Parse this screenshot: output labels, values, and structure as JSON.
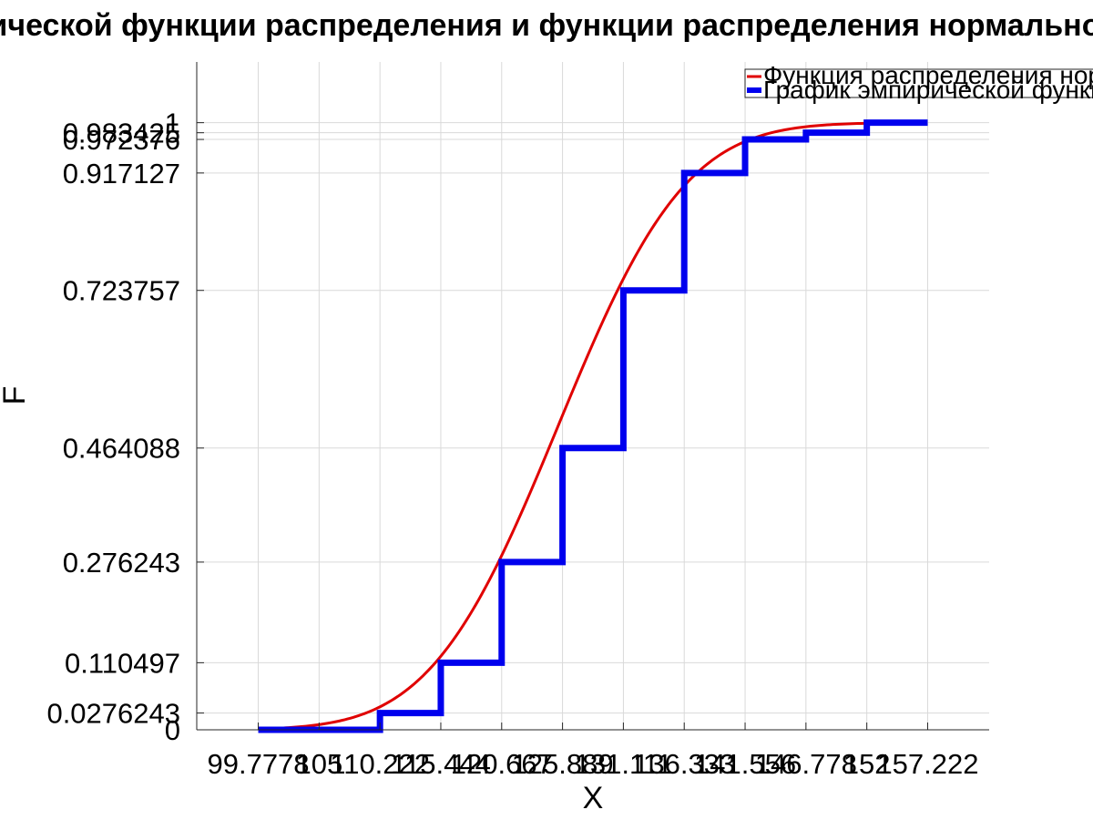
{
  "chart_data": {
    "type": "line",
    "title": "График эмпирической функции распределения и функции распределения нормального распределения",
    "xlabel": "X",
    "ylabel": "F",
    "xlim": [
      94.5,
      162.5
    ],
    "ylim": [
      0,
      1.1
    ],
    "grid": true,
    "legend_position": "top-right",
    "x_ticks": [
      99.7778,
      105,
      110.222,
      115.444,
      120.667,
      125.889,
      131.111,
      136.333,
      141.556,
      146.778,
      152,
      157.222
    ],
    "x_tick_labels": [
      "99.7778",
      "105",
      "110.222",
      "115.444",
      "120.667",
      "125.889",
      "131.111",
      "136.333",
      "141.556",
      "146.778",
      "152",
      "157.222"
    ],
    "y_ticks": [
      0,
      0.0276243,
      0.110497,
      0.276243,
      0.464088,
      0.723757,
      0.917127,
      0.972376,
      0.983425,
      1
    ],
    "y_tick_labels": [
      "0",
      "0.0276243",
      "0.110497",
      "0.276243",
      "0.464088",
      "0.723757",
      "0.917127",
      "0.972376",
      "0.983425",
      "1"
    ],
    "series": [
      {
        "name": "Функция распределения нормального распределения",
        "kind": "normal_cdf",
        "mean": 125.5,
        "std": 8.6,
        "x_range": [
          99.7778,
          157.222
        ],
        "color": "#e00000"
      },
      {
        "name": "График эмпирической функции распределения",
        "kind": "step",
        "x": [
          99.7778,
          110.222,
          115.444,
          120.667,
          125.889,
          131.111,
          136.333,
          141.556,
          146.778,
          152,
          157.222
        ],
        "y": [
          0,
          0.0276243,
          0.110497,
          0.276243,
          0.464088,
          0.723757,
          0.917127,
          0.972376,
          0.983425,
          1,
          1
        ],
        "color": "#0000ee"
      }
    ]
  }
}
